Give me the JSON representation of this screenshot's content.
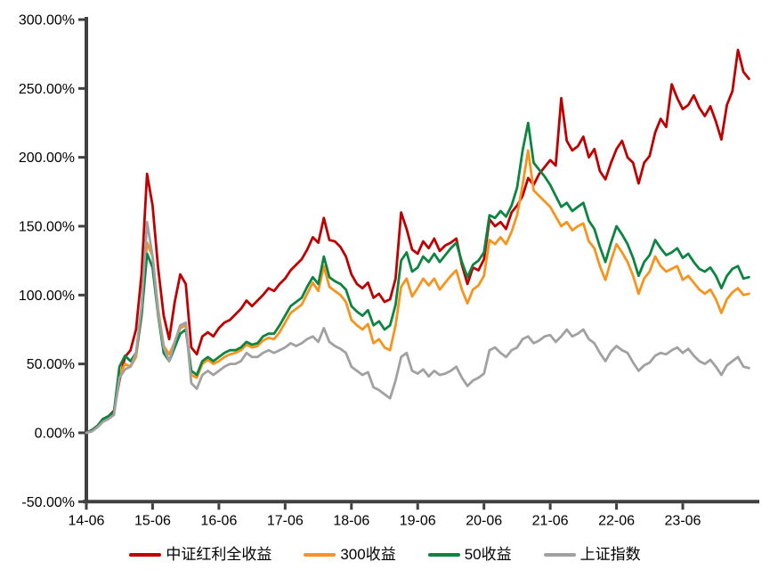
{
  "chart_data": {
    "type": "line",
    "title": "",
    "unit": "percent",
    "grid": false,
    "legend_position": "bottom",
    "background": "#FFFFFF",
    "axis_color": "#404040",
    "text_color": "#000000",
    "ylim": [
      -50,
      300
    ],
    "y_ticks": [
      -50,
      0,
      50,
      100,
      150,
      200,
      250,
      300
    ],
    "y_tick_labels": [
      "-50.00%",
      "0.00%",
      "50.00%",
      "100.00%",
      "150.00%",
      "200.00%",
      "250.00%",
      "300.00%"
    ],
    "x_tick_labels": [
      "14-06",
      "15-06",
      "16-06",
      "17-06",
      "18-06",
      "19-06",
      "20-06",
      "21-06",
      "22-06",
      "23-06"
    ],
    "x_tick_month_indices": [
      0,
      12,
      24,
      36,
      48,
      60,
      72,
      84,
      96,
      108
    ],
    "x_start": "2014-06",
    "x_end": "2024-06",
    "points_per_series": 121,
    "resolution": "monthly approximation of daily cumulative return series",
    "series": [
      {
        "id": "csi-dividend-total-return",
        "name": "中证红利全收益",
        "color": "#C00000",
        "values": [
          0,
          2,
          5,
          10,
          12,
          16,
          38,
          55,
          60,
          75,
          115,
          188,
          165,
          120,
          85,
          68,
          95,
          115,
          108,
          62,
          57,
          70,
          73,
          70,
          76,
          80,
          82,
          86,
          90,
          96,
          92,
          96,
          100,
          105,
          103,
          108,
          112,
          118,
          122,
          126,
          133,
          142,
          138,
          156,
          140,
          139,
          135,
          128,
          115,
          108,
          105,
          109,
          98,
          101,
          95,
          97,
          112,
          160,
          148,
          133,
          130,
          139,
          134,
          141,
          132,
          136,
          138,
          141,
          122,
          108,
          120,
          118,
          126,
          155,
          150,
          153,
          148,
          160,
          165,
          172,
          185,
          180,
          188,
          193,
          198,
          194,
          243,
          212,
          205,
          208,
          215,
          200,
          206,
          190,
          184,
          196,
          206,
          212,
          200,
          196,
          181,
          196,
          201,
          218,
          228,
          222,
          253,
          243,
          235,
          238,
          245,
          236,
          230,
          237,
          226,
          213,
          238,
          248,
          278,
          262,
          257
        ]
      },
      {
        "id": "csi300-return",
        "name": "300收益",
        "color": "#F7941D",
        "values": [
          0,
          2,
          4,
          9,
          11,
          14,
          42,
          50,
          48,
          55,
          85,
          138,
          128,
          90,
          63,
          57,
          66,
          76,
          78,
          42,
          40,
          50,
          53,
          50,
          52,
          55,
          57,
          58,
          60,
          64,
          62,
          63,
          67,
          69,
          68,
          73,
          80,
          87,
          90,
          93,
          101,
          109,
          103,
          121,
          106,
          103,
          100,
          95,
          82,
          78,
          75,
          79,
          65,
          68,
          62,
          60,
          78,
          106,
          112,
          99,
          105,
          112,
          107,
          112,
          104,
          109,
          114,
          118,
          104,
          94,
          104,
          107,
          114,
          140,
          137,
          142,
          137,
          146,
          158,
          180,
          205,
          176,
          172,
          168,
          164,
          157,
          150,
          153,
          147,
          150,
          152,
          139,
          134,
          121,
          111,
          125,
          137,
          131,
          124,
          114,
          101,
          112,
          117,
          128,
          121,
          117,
          119,
          121,
          111,
          114,
          109,
          104,
          101,
          104,
          97,
          87,
          97,
          102,
          105,
          100,
          101
        ]
      },
      {
        "id": "sse50-return",
        "name": "50收益",
        "color": "#0B8540",
        "values": [
          0,
          2,
          5,
          10,
          12,
          15,
          48,
          56,
          52,
          58,
          85,
          130,
          120,
          86,
          58,
          52,
          62,
          72,
          75,
          45,
          42,
          52,
          55,
          52,
          55,
          58,
          60,
          60,
          62,
          66,
          64,
          65,
          70,
          72,
          72,
          78,
          85,
          92,
          95,
          98,
          106,
          113,
          108,
          128,
          113,
          110,
          108,
          104,
          92,
          88,
          85,
          89,
          78,
          81,
          75,
          78,
          93,
          125,
          131,
          117,
          120,
          128,
          124,
          130,
          124,
          129,
          134,
          138,
          124,
          113,
          122,
          125,
          131,
          158,
          156,
          161,
          157,
          165,
          178,
          205,
          225,
          196,
          191,
          186,
          180,
          172,
          164,
          167,
          161,
          164,
          167,
          154,
          148,
          135,
          124,
          138,
          150,
          144,
          137,
          127,
          114,
          124,
          129,
          140,
          134,
          129,
          131,
          134,
          127,
          130,
          124,
          119,
          117,
          120,
          114,
          105,
          114,
          119,
          121,
          112,
          113
        ]
      },
      {
        "id": "sse-composite-index",
        "name": "上证指数",
        "color": "#A1A1A1",
        "values": [
          0,
          1,
          4,
          8,
          10,
          13,
          40,
          46,
          48,
          58,
          92,
          153,
          128,
          88,
          62,
          52,
          66,
          78,
          80,
          36,
          32,
          42,
          45,
          42,
          45,
          48,
          50,
          50,
          52,
          58,
          55,
          55,
          58,
          60,
          58,
          60,
          62,
          65,
          63,
          65,
          68,
          70,
          66,
          76,
          66,
          63,
          61,
          58,
          48,
          45,
          42,
          44,
          33,
          31,
          28,
          25,
          38,
          55,
          58,
          45,
          43,
          46,
          41,
          45,
          42,
          43,
          45,
          48,
          40,
          34,
          38,
          40,
          43,
          60,
          62,
          58,
          55,
          60,
          62,
          68,
          70,
          65,
          67,
          70,
          71,
          66,
          70,
          75,
          70,
          72,
          75,
          68,
          65,
          58,
          52,
          59,
          63,
          60,
          58,
          51,
          45,
          49,
          51,
          56,
          58,
          57,
          60,
          62,
          58,
          61,
          56,
          52,
          50,
          53,
          48,
          42,
          49,
          52,
          55,
          48,
          47
        ]
      }
    ]
  }
}
